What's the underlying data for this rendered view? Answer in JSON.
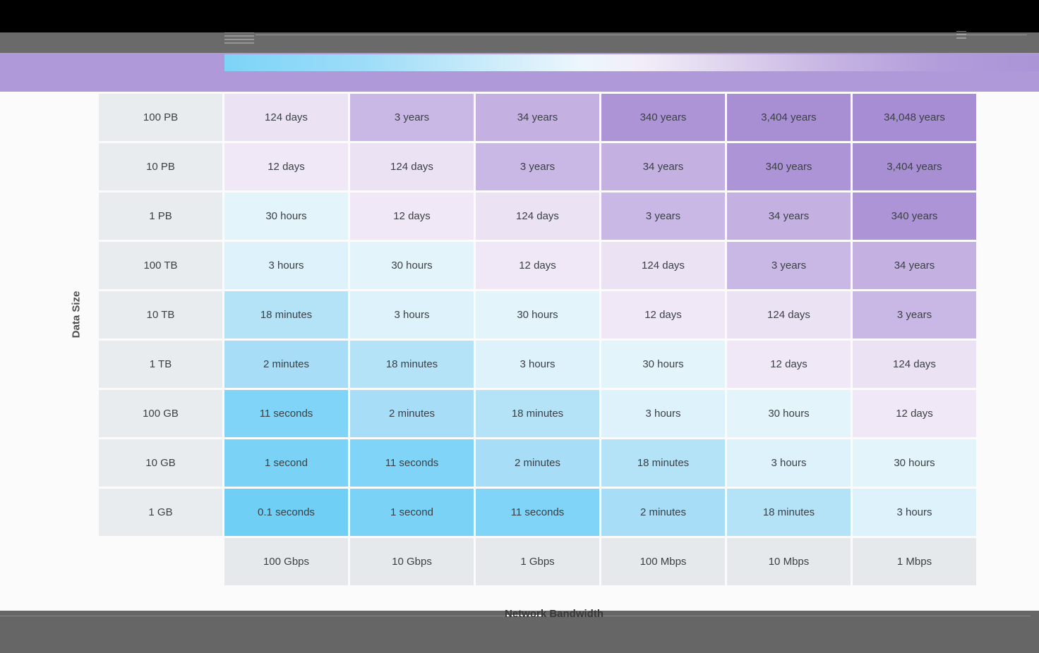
{
  "colors": {
    "top_bar": "#000000",
    "toolbar_gray": "#6A6A6A",
    "footer_gray": "#666667",
    "purple_band": "#AF99D9",
    "content_bg": "#FBFBFC",
    "row_header_bg": "#E9ECEF",
    "col_header_bg": "#E5E9EB",
    "cell_text": "#3B4045",
    "legend_gradient_start": "#7DD4F7",
    "legend_gradient_mid": "#F2EEF8",
    "legend_gradient_end": "#AB94D7"
  },
  "chart_data": {
    "type": "heatmap",
    "title": "",
    "row_axis_label": "Data Size",
    "col_axis_label": "Network Bandwidth",
    "row_categories": [
      "100 PB",
      "10 PB",
      "1 PB",
      "100 TB",
      "10 TB",
      "1 TB",
      "100 GB",
      "10 GB",
      "1 GB"
    ],
    "col_categories": [
      "100 Gbps",
      "10 Gbps",
      "1 Gbps",
      "100 Mbps",
      "10 Mbps",
      "1 Mbps"
    ],
    "values": [
      [
        "124 days",
        "3 years",
        "34 years",
        "340 years",
        "3,404 years",
        "34,048 years"
      ],
      [
        "12 days",
        "124 days",
        "3 years",
        "34 years",
        "340 years",
        "3,404 years"
      ],
      [
        "30 hours",
        "12 days",
        "124 days",
        "3 years",
        "34 years",
        "340 years"
      ],
      [
        "3 hours",
        "30 hours",
        "12 days",
        "124 days",
        "3 years",
        "34 years"
      ],
      [
        "18 minutes",
        "3 hours",
        "30 hours",
        "12 days",
        "124 days",
        "3 years"
      ],
      [
        "2 minutes",
        "18 minutes",
        "3 hours",
        "30 hours",
        "12 days",
        "124 days"
      ],
      [
        "11 seconds",
        "2 minutes",
        "18 minutes",
        "3 hours",
        "30 hours",
        "12 days"
      ],
      [
        "1 second",
        "11 seconds",
        "2 minutes",
        "18 minutes",
        "3 hours",
        "30 hours"
      ],
      [
        "0.1 seconds",
        "1 second",
        "11 seconds",
        "2 minutes",
        "18 minutes",
        "3 hours"
      ]
    ],
    "cell_colors": {
      "0.1 seconds": "#70CFF5",
      "1 second": "#7AD2F6",
      "11 seconds": "#7FD4F7",
      "2 minutes": "#A7DDF7",
      "18 minutes": "#B4E3F8",
      "3 hours": "#DEF2FB",
      "30 hours": "#E3F4FB",
      "12 days": "#F0E8F6",
      "124 days": "#EBE2F3",
      "3 years": "#C9B8E5",
      "34 years": "#C4B1E1",
      "340 years": "#AC94D7",
      "3,404 years": "#A88FD4",
      "34,048 years": "#A78DD3"
    },
    "legend": {
      "type": "gradient",
      "position": "top",
      "from_color": "#7DD4F7",
      "to_color": "#AB94D7"
    },
    "grid": false
  }
}
